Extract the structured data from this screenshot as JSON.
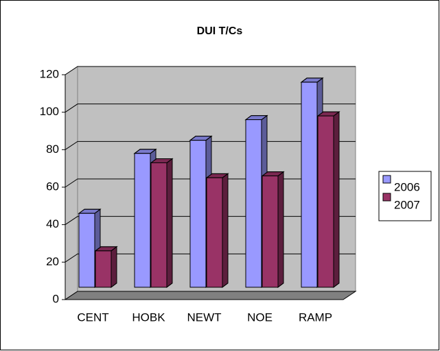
{
  "chart_data": {
    "type": "bar3d",
    "title": "DUI T/Cs",
    "categories": [
      "CENT",
      "HOBK",
      "NEWT",
      "NOE",
      "RAMP"
    ],
    "series": [
      {
        "name": "2006",
        "color": "#9999ff",
        "values": [
          46,
          78,
          85,
          96,
          116
        ]
      },
      {
        "name": "2007",
        "color": "#993366",
        "values": [
          26,
          73,
          65,
          66,
          98
        ]
      }
    ],
    "ylim": [
      0,
      120
    ],
    "yticks": [
      0,
      20,
      40,
      60,
      80,
      100,
      120
    ],
    "grid": true,
    "legend": "right"
  }
}
